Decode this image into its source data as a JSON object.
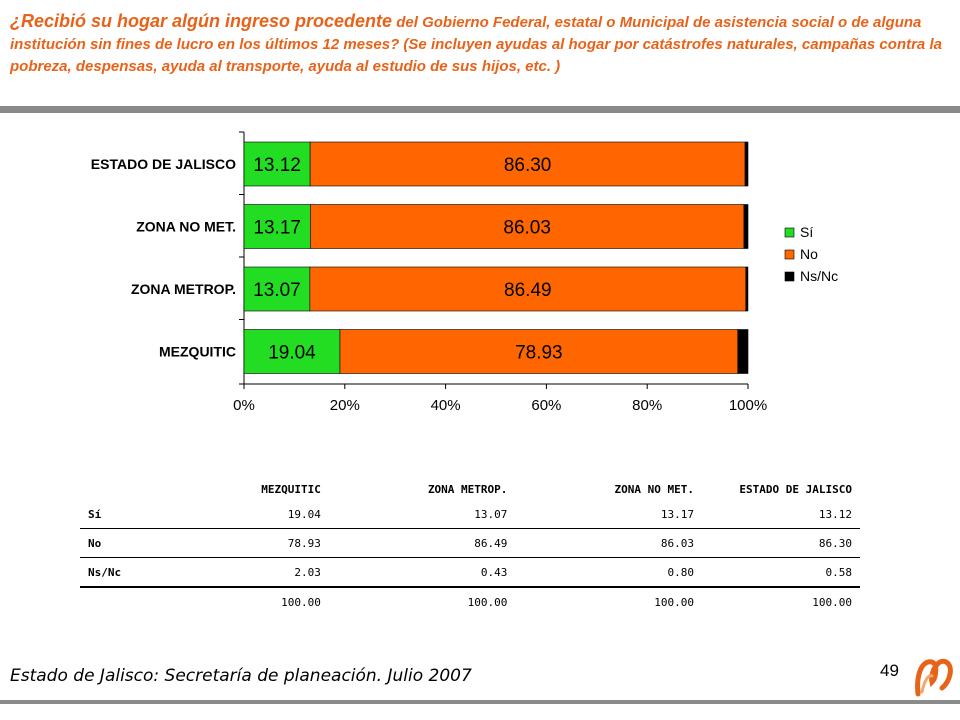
{
  "title": {
    "lead": "¿Recibió su hogar algún ingreso procedente",
    "rest": " del Gobierno Federal, estatal o Municipal de asistencia social o de alguna institución sin fines de lucro en los últimos 12 meses? (Se incluyen ayudas al hogar por catástrofes naturales, campañas contra la pobreza, despensas, ayuda al transporte, ayuda al estudio de sus hijos, etc. )"
  },
  "chart_data": {
    "type": "bar",
    "orientation": "horizontal",
    "stacked": "percent",
    "categories": [
      "ESTADO DE JALISCO",
      "ZONA NO MET.",
      "ZONA METROP.",
      "MEZQUITIC"
    ],
    "series": [
      {
        "name": "Sí",
        "color": "#22dd22",
        "values": [
          13.12,
          13.17,
          13.07,
          19.04
        ]
      },
      {
        "name": "No",
        "color": "#ff6600",
        "values": [
          86.3,
          86.03,
          86.49,
          78.93
        ]
      },
      {
        "name": "Ns/Nc",
        "color": "#000000",
        "values": [
          0.58,
          0.8,
          0.43,
          2.03
        ]
      }
    ],
    "data_labels": [
      [
        "13.12",
        "86.30"
      ],
      [
        "13.17",
        "86.03"
      ],
      [
        "13.07",
        "86.49"
      ],
      [
        "19.04",
        "78.93"
      ]
    ],
    "x_ticks": [
      "0%",
      "20%",
      "40%",
      "60%",
      "80%",
      "100%"
    ],
    "xlim": [
      0,
      100
    ],
    "grid": false,
    "legend_position": "right"
  },
  "table": {
    "headers": [
      "",
      "MEZQUITIC",
      "ZONA METROP.",
      "ZONA NO MET.",
      "ESTADO DE JALISCO"
    ],
    "rows": [
      {
        "label": "Sí",
        "values": [
          "19.04",
          "13.07",
          "13.17",
          "13.12"
        ]
      },
      {
        "label": "No",
        "values": [
          "78.93",
          "86.49",
          "86.03",
          "86.30"
        ]
      },
      {
        "label": "Ns/Nc",
        "values": [
          "2.03",
          "0.43",
          "0.80",
          "0.58"
        ]
      },
      {
        "label": "",
        "values": [
          "100.00",
          "100.00",
          "100.00",
          "100.00"
        ]
      }
    ]
  },
  "footer": {
    "source": "Estado de Jalisco: Secretaría de planeación. Julio 2007",
    "page_number": "49"
  },
  "colors": {
    "accent": "#e8631a",
    "rule": "#8a8a8a"
  }
}
